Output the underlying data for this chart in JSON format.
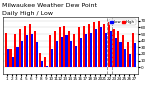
{
  "title": "Milwaukee Weather Dew Point",
  "subtitle": "Daily High / Low",
  "days": [
    1,
    2,
    3,
    4,
    5,
    6,
    7,
    8,
    9,
    10,
    11,
    12,
    13,
    14,
    15,
    16,
    17,
    18,
    19,
    20,
    21,
    22,
    23,
    24,
    25,
    26,
    27
  ],
  "highs": [
    52,
    28,
    50,
    58,
    62,
    65,
    55,
    22,
    15,
    48,
    55,
    60,
    62,
    55,
    50,
    60,
    62,
    65,
    68,
    70,
    65,
    68,
    58,
    55,
    48,
    38,
    52
  ],
  "lows": [
    28,
    15,
    30,
    40,
    48,
    50,
    38,
    10,
    2,
    28,
    40,
    45,
    48,
    40,
    32,
    44,
    50,
    52,
    58,
    60,
    52,
    54,
    44,
    38,
    28,
    20,
    36
  ],
  "high_color": "#ff0000",
  "low_color": "#0000ff",
  "background_color": "#ffffff",
  "ylim": [
    -10,
    75
  ],
  "yticks": [
    0,
    10,
    20,
    30,
    40,
    50,
    60,
    70
  ],
  "vline1": 20.5,
  "vline2": 21.5,
  "tick_fontsize": 3.0,
  "title_fontsize": 4.5
}
